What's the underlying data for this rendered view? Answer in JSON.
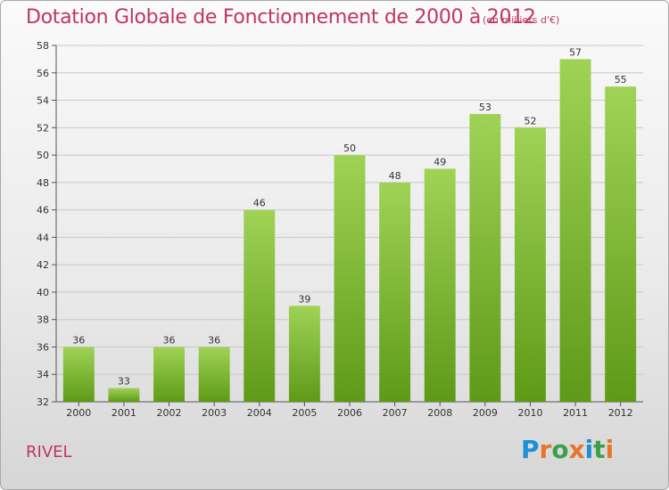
{
  "chart_data": {
    "type": "bar",
    "title": "Dotation Globale de Fonctionnement de 2000 à 2012",
    "subtitle": "(en milliers d'€)",
    "categories": [
      "2000",
      "2001",
      "2002",
      "2003",
      "2004",
      "2005",
      "2006",
      "2007",
      "2008",
      "2009",
      "2010",
      "2011",
      "2012"
    ],
    "values": [
      36,
      33,
      36,
      36,
      46,
      39,
      50,
      48,
      49,
      53,
      52,
      57,
      55
    ],
    "ylim": [
      32,
      58
    ],
    "yticks": [
      32,
      34,
      36,
      38,
      40,
      42,
      44,
      46,
      48,
      50,
      52,
      54,
      56,
      58
    ],
    "grid": true,
    "bar_color_top": "#9fd356",
    "bar_color_bottom": "#5e9a17"
  },
  "commune": "RIVEL",
  "logo": {
    "text": "Proxiti",
    "letter_colors": [
      "#1f8fd6",
      "#e8742b",
      "#3aa14a",
      "#e8742b",
      "#1f8fd6",
      "#3aa14a",
      "#e8742b"
    ]
  }
}
